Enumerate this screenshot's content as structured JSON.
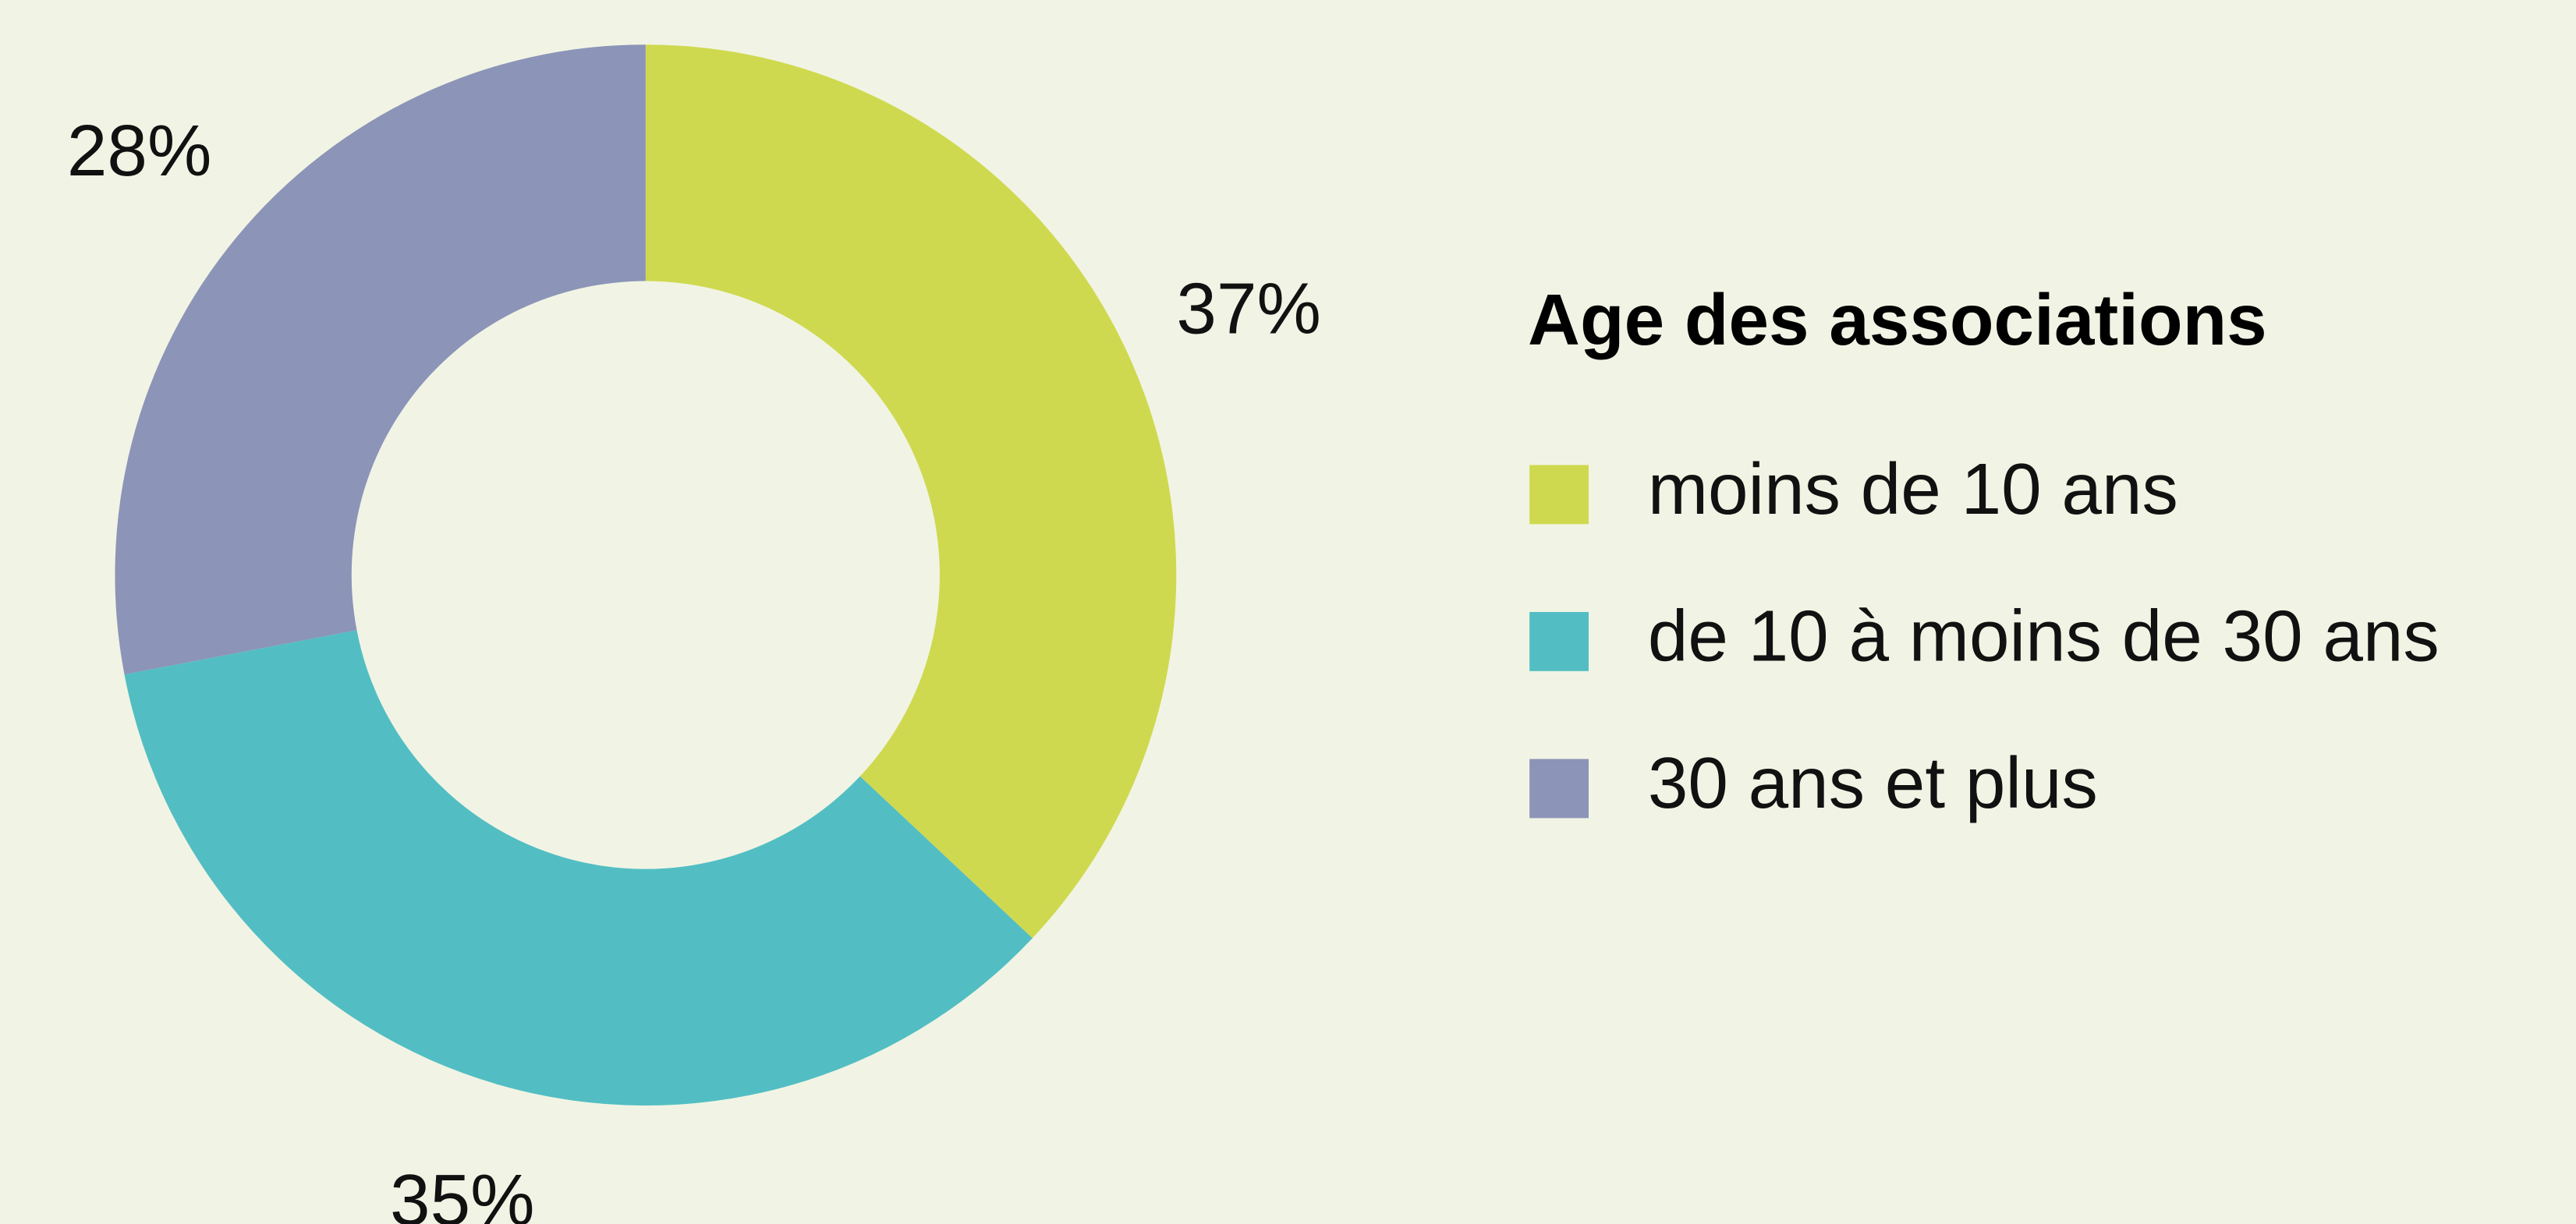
{
  "chart_data": {
    "type": "pie",
    "donut": true,
    "title": "Age des associations",
    "categories": [
      "moins de 10 ans",
      "de 10 à moins de 30 ans",
      "30 ans et plus"
    ],
    "values": [
      37,
      35,
      28
    ],
    "value_labels": [
      "37%",
      "35%",
      "28%"
    ],
    "colors": [
      "#cfd94f",
      "#52bec3",
      "#8c94b8"
    ]
  }
}
